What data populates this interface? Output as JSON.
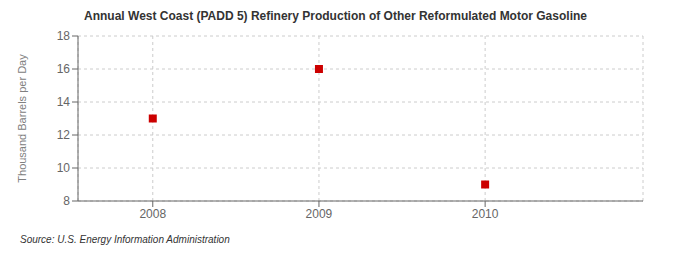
{
  "chart_data": {
    "type": "scatter",
    "title": "Annual West Coast (PADD 5) Refinery Production of Other Reformulated Motor Gasoline",
    "y_label": "Thousand Barrels per Day",
    "annotations": [
      "Source: U.S. Energy Information Administration"
    ],
    "x": [
      2008,
      2009,
      2010
    ],
    "values": [
      13,
      16,
      9
    ],
    "color": "#CC0000",
    "marker": "square",
    "xlim": [
      2007.55,
      2010.95
    ],
    "xticks": [
      2008,
      2009,
      2010
    ],
    "ylim": [
      8,
      18
    ],
    "yticks": [
      8,
      10,
      12,
      14,
      16,
      18
    ],
    "grid": true
  }
}
